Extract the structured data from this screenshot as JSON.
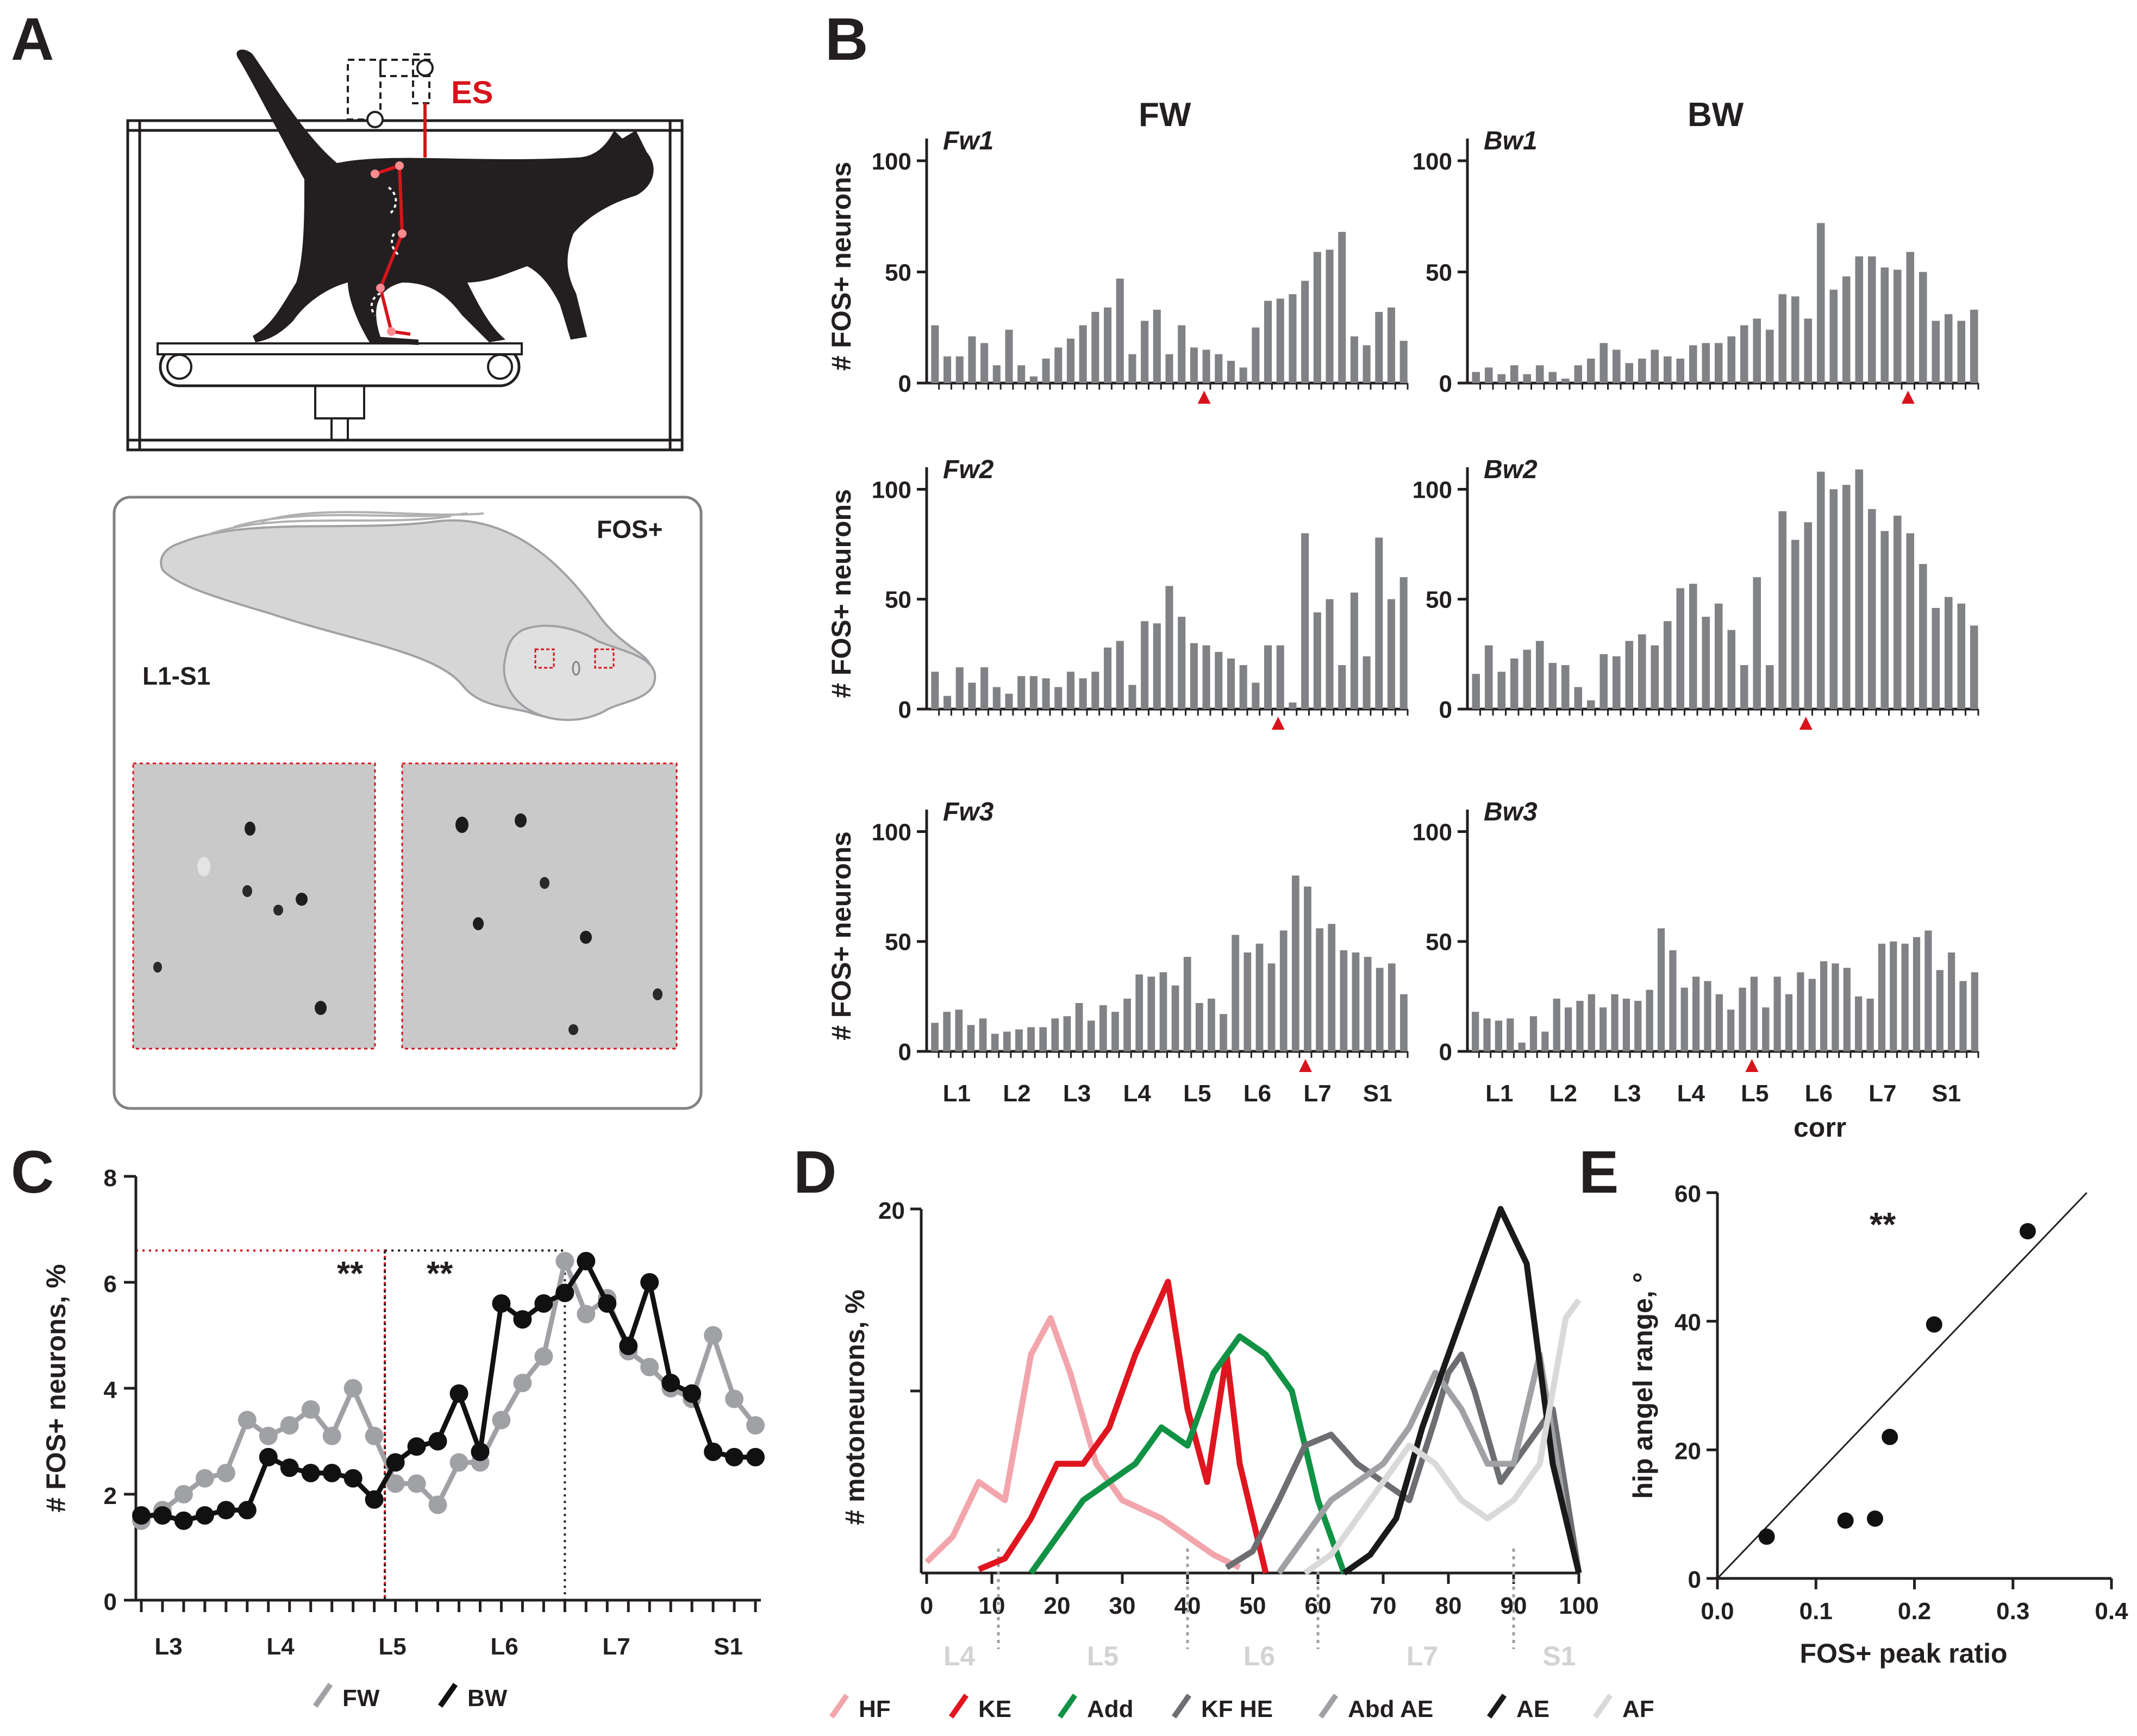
{
  "figure": {
    "panel_labels": [
      "A",
      "B",
      "C",
      "D",
      "E"
    ],
    "panelA": {
      "es_label": "ES",
      "fos_label": "FOS+",
      "region_label": "L1-S1"
    },
    "panelB": {
      "col_titles": [
        "FW",
        "BW"
      ],
      "corr_label": "corr"
    },
    "panelC": {
      "significance": [
        "**",
        "**"
      ]
    },
    "panelE": {
      "significance": "**"
    }
  },
  "chart_data": [
    {
      "id": "B-Fw1",
      "type": "bar",
      "subtitle": "Fw1",
      "column": "FW",
      "ylabel": "# FOS+ neurons",
      "ylim": [
        0,
        110
      ],
      "yticks": [
        0,
        50,
        100
      ],
      "xticklabels": [
        "L1",
        "L2",
        "L3",
        "L4",
        "L5",
        "L6",
        "L7",
        "S1"
      ],
      "values": [
        26,
        12,
        12,
        21,
        18,
        8,
        24,
        8,
        3,
        11,
        16,
        20,
        26,
        32,
        34,
        47,
        13,
        28,
        33,
        13,
        26,
        16,
        15,
        13,
        10,
        7,
        25,
        37,
        38,
        40,
        46,
        59,
        60,
        68,
        21,
        17,
        32,
        34,
        19
      ],
      "marker_index": 22
    },
    {
      "id": "B-Bw1",
      "type": "bar",
      "subtitle": "Bw1",
      "column": "BW",
      "ylabel": "",
      "ylim": [
        0,
        110
      ],
      "yticks": [
        0,
        50,
        100
      ],
      "xticklabels": [
        "L1",
        "L2",
        "L3",
        "L4",
        "L5",
        "L6",
        "L7",
        "S1"
      ],
      "values": [
        5,
        7,
        4,
        8,
        4,
        8,
        5,
        2,
        8,
        11,
        18,
        15,
        9,
        11,
        15,
        12,
        11,
        17,
        18,
        18,
        21,
        26,
        29,
        24,
        40,
        39,
        29,
        72,
        42,
        48,
        57,
        57,
        52,
        51,
        59,
        50,
        28,
        31,
        28,
        33
      ],
      "marker_index": 34
    },
    {
      "id": "B-Fw2",
      "type": "bar",
      "subtitle": "Fw2",
      "column": "FW",
      "ylabel": "# FOS+ neurons",
      "ylim": [
        0,
        110
      ],
      "yticks": [
        0,
        50,
        100
      ],
      "xticklabels": [
        "L1",
        "L2",
        "L3",
        "L4",
        "L5",
        "L6",
        "L7",
        "S1"
      ],
      "values": [
        17,
        6,
        19,
        12,
        19,
        10,
        7,
        15,
        15,
        14,
        10,
        17,
        14,
        17,
        28,
        31,
        11,
        40,
        39,
        56,
        42,
        30,
        29,
        26,
        23,
        20,
        12,
        29,
        29,
        3,
        80,
        44,
        50,
        20,
        53,
        24,
        78,
        50,
        60
      ],
      "marker_index": 28
    },
    {
      "id": "B-Bw2",
      "type": "bar",
      "subtitle": "Bw2",
      "column": "BW",
      "ylabel": "",
      "ylim": [
        0,
        110
      ],
      "yticks": [
        0,
        50,
        100
      ],
      "xticklabels": [
        "L1",
        "L2",
        "L3",
        "L4",
        "L5",
        "L6",
        "L7",
        "S1"
      ],
      "values": [
        16,
        29,
        17,
        23,
        27,
        31,
        21,
        20,
        10,
        4,
        25,
        24,
        31,
        34,
        29,
        40,
        55,
        57,
        42,
        48,
        36,
        20,
        60,
        20,
        90,
        77,
        85,
        108,
        100,
        102,
        109,
        91,
        81,
        88,
        80,
        66,
        46,
        51,
        48,
        38
      ],
      "marker_index": 26
    },
    {
      "id": "B-Fw3",
      "type": "bar",
      "subtitle": "Fw3",
      "column": "FW",
      "ylabel": "# FOS+ neurons",
      "ylim": [
        0,
        110
      ],
      "yticks": [
        0,
        50,
        100
      ],
      "xticklabels": [
        "L1",
        "L2",
        "L3",
        "L4",
        "L5",
        "L6",
        "L7",
        "S1"
      ],
      "values": [
        13,
        18,
        19,
        12,
        15,
        8,
        9,
        10,
        11,
        11,
        15,
        16,
        22,
        14,
        21,
        18,
        24,
        35,
        34,
        36,
        30,
        43,
        22,
        24,
        17,
        53,
        45,
        49,
        40,
        55,
        80,
        75,
        56,
        58,
        46,
        45,
        43,
        38,
        40,
        26
      ],
      "marker_index": 31
    },
    {
      "id": "B-Bw3",
      "type": "bar",
      "subtitle": "Bw3",
      "column": "BW",
      "ylabel": "",
      "ylim": [
        0,
        110
      ],
      "yticks": [
        0,
        50,
        100
      ],
      "xticklabels": [
        "L1",
        "L2",
        "L3",
        "L4",
        "L5",
        "L6",
        "L7",
        "S1"
      ],
      "values": [
        18,
        15,
        14,
        15,
        4,
        16,
        9,
        24,
        20,
        23,
        26,
        20,
        26,
        24,
        23,
        28,
        56,
        46,
        29,
        34,
        32,
        26,
        19,
        29,
        34,
        20,
        34,
        26,
        36,
        33,
        41,
        40,
        38,
        25,
        24,
        49,
        50,
        49,
        52,
        55,
        37,
        45,
        32,
        36
      ],
      "marker_index": 24
    },
    {
      "id": "C",
      "type": "line",
      "ylabel": "# FOS+ neurons, %",
      "ylim": [
        0,
        8
      ],
      "yticks": [
        0,
        2,
        4,
        6,
        8
      ],
      "xticklabels": [
        "L3",
        "L4",
        "L5",
        "L6",
        "L7",
        "S1"
      ],
      "series": [
        {
          "name": "FW",
          "color": "#a0a1a4",
          "values": [
            1.5,
            1.7,
            2.0,
            2.3,
            2.4,
            3.4,
            3.1,
            3.3,
            3.6,
            3.1,
            4.0,
            3.1,
            2.2,
            2.2,
            1.8,
            2.6,
            2.6,
            3.4,
            4.1,
            4.6,
            6.4,
            5.4,
            5.7,
            4.7,
            4.4,
            4.0,
            3.8,
            5.0,
            3.8,
            3.3
          ]
        },
        {
          "name": "BW",
          "color": "#111111",
          "values": [
            1.6,
            1.6,
            1.5,
            1.6,
            1.7,
            1.7,
            2.7,
            2.5,
            2.4,
            2.4,
            2.3,
            1.9,
            2.6,
            2.9,
            3.0,
            3.9,
            2.8,
            5.6,
            5.3,
            5.6,
            5.8,
            6.4,
            5.6,
            4.8,
            6.0,
            4.1,
            3.9,
            2.8,
            2.7,
            2.7
          ]
        }
      ]
    },
    {
      "id": "D",
      "type": "line",
      "ylabel": "# motoneurons, %",
      "ylim": [
        0,
        20
      ],
      "yticks": [
        20
      ],
      "xlim": [
        0,
        100
      ],
      "xticks": [
        0,
        10,
        20,
        30,
        40,
        50,
        60,
        70,
        80,
        90,
        100
      ],
      "segment_labels": [
        "L4",
        "L5",
        "L6",
        "L7",
        "S1"
      ],
      "series": [
        {
          "name": "HF",
          "color": "#f2a5ab",
          "x": [
            0,
            4,
            8,
            12,
            16,
            19,
            22,
            26,
            30,
            36,
            40,
            44,
            48
          ],
          "y": [
            0.6,
            2,
            5,
            4,
            12,
            14,
            11,
            6,
            4,
            3,
            2,
            1,
            0.3
          ]
        },
        {
          "name": "KE",
          "color": "#e0151f",
          "x": [
            8,
            12,
            16,
            20,
            24,
            28,
            32,
            37,
            40,
            43,
            46,
            48,
            52
          ],
          "y": [
            0.2,
            0.8,
            3,
            6,
            6,
            8,
            12,
            16,
            9,
            5,
            12,
            6,
            0
          ]
        },
        {
          "name": "Add",
          "color": "#119244",
          "x": [
            16,
            20,
            24,
            28,
            32,
            36,
            40,
            44,
            48,
            52,
            56,
            60,
            64
          ],
          "y": [
            0,
            2,
            4,
            5,
            6,
            8,
            7,
            11,
            13,
            12,
            10,
            4,
            0
          ]
        },
        {
          "name": "KF HE",
          "color": "#6d6e71",
          "x": [
            46,
            50,
            54,
            58,
            62,
            66,
            70,
            74,
            78,
            80,
            82,
            84,
            88,
            92,
            96,
            100
          ],
          "y": [
            0.3,
            1.2,
            4,
            7,
            7.6,
            6,
            5,
            4,
            8.5,
            11,
            12,
            10,
            5,
            7,
            9,
            0
          ]
        },
        {
          "name": "Abd AE",
          "color": "#a0a1a4",
          "x": [
            54,
            58,
            62,
            66,
            70,
            74,
            78,
            82,
            86,
            90,
            94,
            98,
            100
          ],
          "y": [
            0,
            2,
            4,
            5,
            6,
            8,
            11,
            9,
            6,
            6,
            12,
            3,
            0
          ]
        },
        {
          "name": "AE",
          "color": "#1a1a1a",
          "x": [
            64,
            68,
            72,
            76,
            80,
            84,
            88,
            92,
            96,
            100
          ],
          "y": [
            0,
            1,
            3,
            8,
            12,
            16,
            20,
            17,
            6,
            0
          ]
        },
        {
          "name": "AF",
          "color": "#d9d9d9",
          "x": [
            58,
            62,
            66,
            70,
            74,
            78,
            82,
            86,
            90,
            94,
            98,
            100
          ],
          "y": [
            0,
            1,
            3,
            5,
            7,
            6,
            4,
            3,
            4,
            6,
            14,
            15
          ]
        }
      ]
    },
    {
      "id": "E",
      "type": "scatter",
      "xlabel": "FOS+ peak ratio",
      "ylabel": "hip angel range, °",
      "xlim": [
        0,
        0.4
      ],
      "ylim": [
        0,
        60
      ],
      "xticks": [
        0.0,
        0.1,
        0.2,
        0.3,
        0.4
      ],
      "yticks": [
        0,
        20,
        40,
        60
      ],
      "points": [
        [
          0.05,
          6.5
        ],
        [
          0.13,
          9
        ],
        [
          0.16,
          9.3
        ],
        [
          0.175,
          22
        ],
        [
          0.22,
          39.5
        ],
        [
          0.315,
          54
        ]
      ],
      "fit_line": [
        [
          0.0,
          0.0
        ],
        [
          0.375,
          60
        ]
      ]
    }
  ]
}
